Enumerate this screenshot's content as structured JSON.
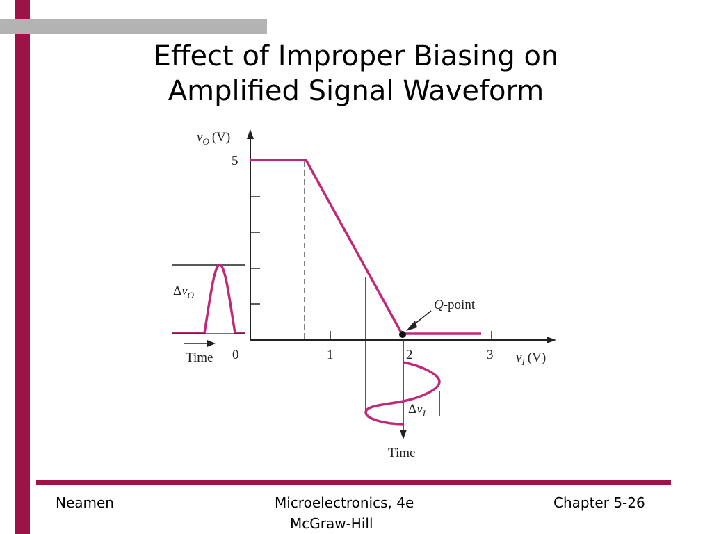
{
  "slide": {
    "title_line1": "Effect of Improper Biasing on",
    "title_line2": "Amplified Signal Waveform"
  },
  "figure": {
    "y_axis_label": "(V)",
    "y_axis_var": "v",
    "y_axis_sub": "O",
    "y_tick_5": "5",
    "x_axis_label": "(V)",
    "x_axis_var": "v",
    "x_axis_sub": "I",
    "x_tick_0": "0",
    "x_tick_1": "1",
    "x_tick_2": "2",
    "x_tick_3": "3",
    "q_point_q": "Q",
    "q_point_rest": "-point",
    "delta_vo_delta": "Δ",
    "delta_vo_var": "v",
    "delta_vo_sub": "O",
    "delta_vi_delta": "Δ",
    "delta_vi_var": "v",
    "delta_vi_sub": "I",
    "time_output": "Time",
    "time_input": "Time",
    "accent_color": "#c0287a"
  },
  "footer": {
    "left": "Neamen",
    "center_line1": "Microelectronics, 4e",
    "center_line2": "McGraw-Hill",
    "right": "Chapter 5-26"
  }
}
